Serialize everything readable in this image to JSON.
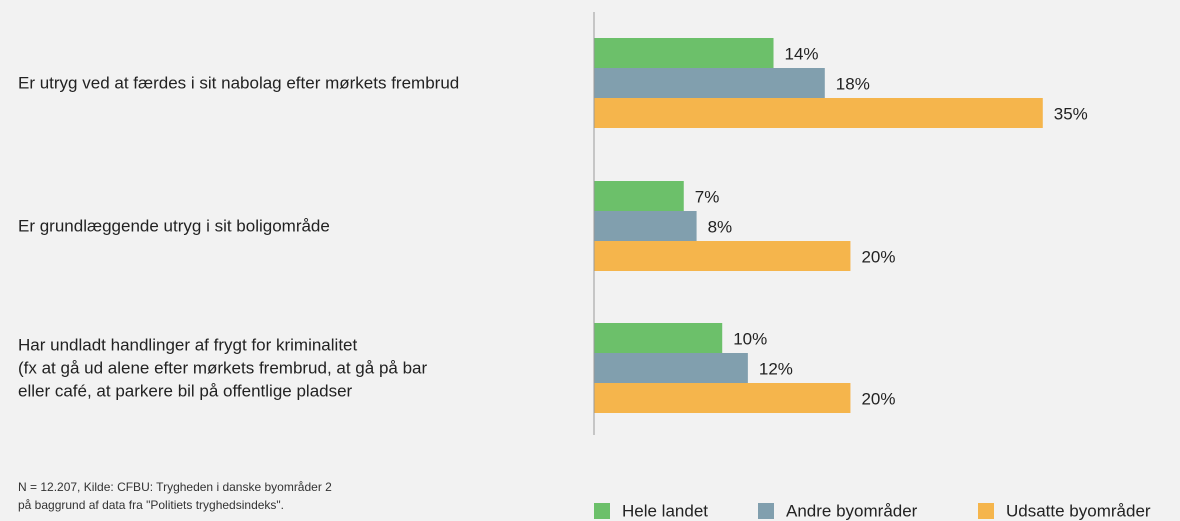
{
  "chart_data": {
    "type": "barh",
    "categories": [
      "Er utryg ved at færdes i sit nabolag efter mørkets frembrud",
      "Er grundlæggende utryg i sit boligområde",
      "Har undladt handlinger af frygt for kriminalitet\n(fx at gå ud alene efter mørkets frembrud, at gå på bar\neller café, at parkere bil på offentlige pladser"
    ],
    "series": [
      {
        "name": "Hele landet",
        "color": "#6cc06a",
        "values": [
          14,
          7,
          10
        ],
        "value_labels": [
          "14%",
          "7%",
          "10%"
        ]
      },
      {
        "name": "Andre byområder",
        "color": "#819fae",
        "values": [
          18,
          8,
          12
        ],
        "value_labels": [
          "18%",
          "8%",
          "12%"
        ]
      },
      {
        "name": "Udsatte byområder",
        "color": "#f5b54c",
        "values": [
          35,
          20,
          20
        ],
        "value_labels": [
          "35%",
          "20%",
          "20%"
        ]
      }
    ],
    "xlim": [
      0,
      45
    ],
    "source": "N = 12.207, Kilde: CFBU: Trygheden i danske byområder 2\npå baggrund af data fra \"Politiets tryghedsindeks\"."
  }
}
